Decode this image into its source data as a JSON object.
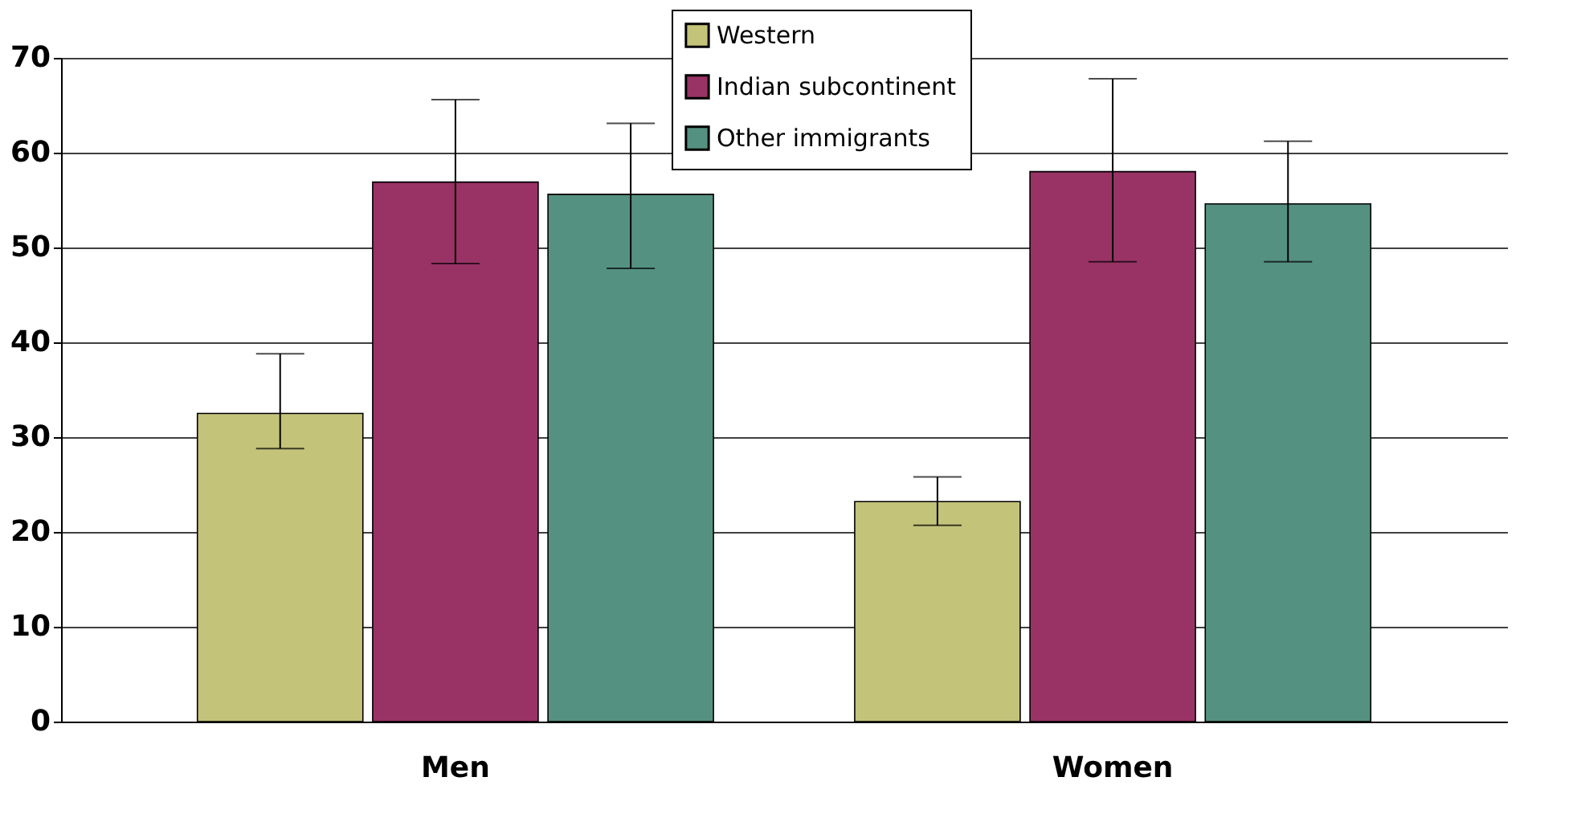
{
  "chart_data": {
    "type": "bar",
    "categories": [
      "Men",
      "Women"
    ],
    "series": [
      {
        "name": "Western",
        "color": "#c3c37a",
        "values": [
          32.5,
          23.2
        ],
        "errors": [
          [
            28.8,
            38.8
          ],
          [
            20.7,
            25.8
          ]
        ]
      },
      {
        "name": "Indian subcontinent",
        "color": "#993366",
        "values": [
          56.9,
          58.0
        ],
        "errors": [
          [
            48.3,
            65.6
          ],
          [
            48.5,
            67.8
          ]
        ]
      },
      {
        "name": "Other immigrants",
        "color": "#559180",
        "values": [
          55.6,
          54.6
        ],
        "errors": [
          [
            47.8,
            63.1
          ],
          [
            48.5,
            61.2
          ]
        ]
      }
    ],
    "ylim": [
      0,
      70
    ],
    "yticks": [
      0,
      10,
      20,
      30,
      40,
      50,
      60,
      70
    ],
    "grid": "y",
    "legend": "top"
  }
}
